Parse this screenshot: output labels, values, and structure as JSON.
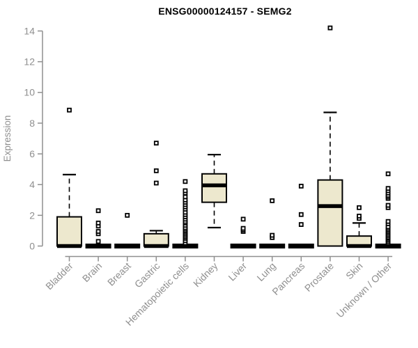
{
  "title": "ENSG00000124157 - SEMG2",
  "colors": {
    "box_fill": "#ede8ce",
    "box_stroke": "#000000",
    "axis": "#8f8f8f",
    "title_color": "#000000",
    "background": "#ffffff"
  },
  "chart_data": {
    "type": "boxplot",
    "title": "ENSG00000124157 - SEMG2",
    "xlabel": "",
    "ylabel": "Expression",
    "ylim": [
      0,
      14
    ],
    "yticks": [
      0,
      2,
      4,
      6,
      8,
      10,
      12,
      14
    ],
    "grid": false,
    "legend": "none",
    "categories": [
      "Bladder",
      "Brain",
      "Breast",
      "Gastric",
      "Hematopoietic cells",
      "Kidney",
      "Liver",
      "Lung",
      "Pancreas",
      "Prostate",
      "Skin",
      "Unknown / Other"
    ],
    "boxes": [
      {
        "category": "Bladder",
        "whisker_low": 0,
        "q1": 0,
        "median": 0,
        "q3": 1.9,
        "whisker_high": 4.65,
        "outliers": [
          8.85
        ]
      },
      {
        "category": "Brain",
        "whisker_low": 0,
        "q1": 0,
        "median": 0,
        "q3": 0,
        "whisker_high": 0,
        "outliers": [
          0.3,
          0.8,
          0.95,
          1.3,
          1.5,
          2.3
        ]
      },
      {
        "category": "Breast",
        "whisker_low": 0,
        "q1": 0,
        "median": 0,
        "q3": 0,
        "whisker_high": 0,
        "outliers": [
          2.0
        ]
      },
      {
        "category": "Gastric",
        "whisker_low": 0,
        "q1": 0,
        "median": 0,
        "q3": 0.8,
        "whisker_high": 1.0,
        "outliers": [
          4.1,
          4.9,
          6.7
        ]
      },
      {
        "category": "Hematopoietic cells",
        "whisker_low": 0,
        "q1": 0,
        "median": 0,
        "q3": 0,
        "whisker_high": 0,
        "outliers": [
          0.2,
          0.35,
          0.5,
          0.6,
          0.7,
          0.8,
          0.9,
          1.0,
          1.1,
          1.2,
          1.35,
          1.5,
          1.6,
          1.75,
          1.9,
          2.05,
          2.2,
          2.4,
          2.55,
          2.7,
          2.85,
          3.0,
          3.2,
          3.45,
          3.6,
          4.2
        ]
      },
      {
        "category": "Kidney",
        "whisker_low": 1.2,
        "q1": 2.85,
        "median": 3.95,
        "q3": 4.7,
        "whisker_high": 5.95,
        "outliers": []
      },
      {
        "category": "Liver",
        "whisker_low": 0,
        "q1": 0,
        "median": 0,
        "q3": 0,
        "whisker_high": 0,
        "outliers": [
          0.95,
          1.05,
          1.15,
          1.75
        ]
      },
      {
        "category": "Lung",
        "whisker_low": 0,
        "q1": 0,
        "median": 0,
        "q3": 0,
        "whisker_high": 0,
        "outliers": [
          0.55,
          0.7,
          2.95
        ]
      },
      {
        "category": "Pancreas",
        "whisker_low": 0,
        "q1": 0,
        "median": 0,
        "q3": 0,
        "whisker_high": 0,
        "outliers": [
          1.4,
          2.05,
          3.9
        ]
      },
      {
        "category": "Prostate",
        "whisker_low": 0,
        "q1": 0,
        "median": 2.6,
        "q3": 4.3,
        "whisker_high": 8.7,
        "outliers": [
          14.2
        ]
      },
      {
        "category": "Skin",
        "whisker_low": 0,
        "q1": 0,
        "median": 0,
        "q3": 0.65,
        "whisker_high": 1.5,
        "outliers": [
          1.8,
          1.95,
          2.5
        ]
      },
      {
        "category": "Unknown / Other",
        "whisker_low": 0,
        "q1": 0,
        "median": 0,
        "q3": 0,
        "whisker_high": 0,
        "outliers": [
          0.2,
          0.3,
          0.4,
          0.5,
          0.55,
          0.65,
          0.75,
          0.85,
          0.95,
          1.05,
          1.15,
          1.25,
          1.45,
          1.6,
          2.5,
          2.65,
          3.1,
          3.2,
          3.3,
          3.45,
          3.6,
          3.75,
          4.7
        ]
      }
    ]
  }
}
